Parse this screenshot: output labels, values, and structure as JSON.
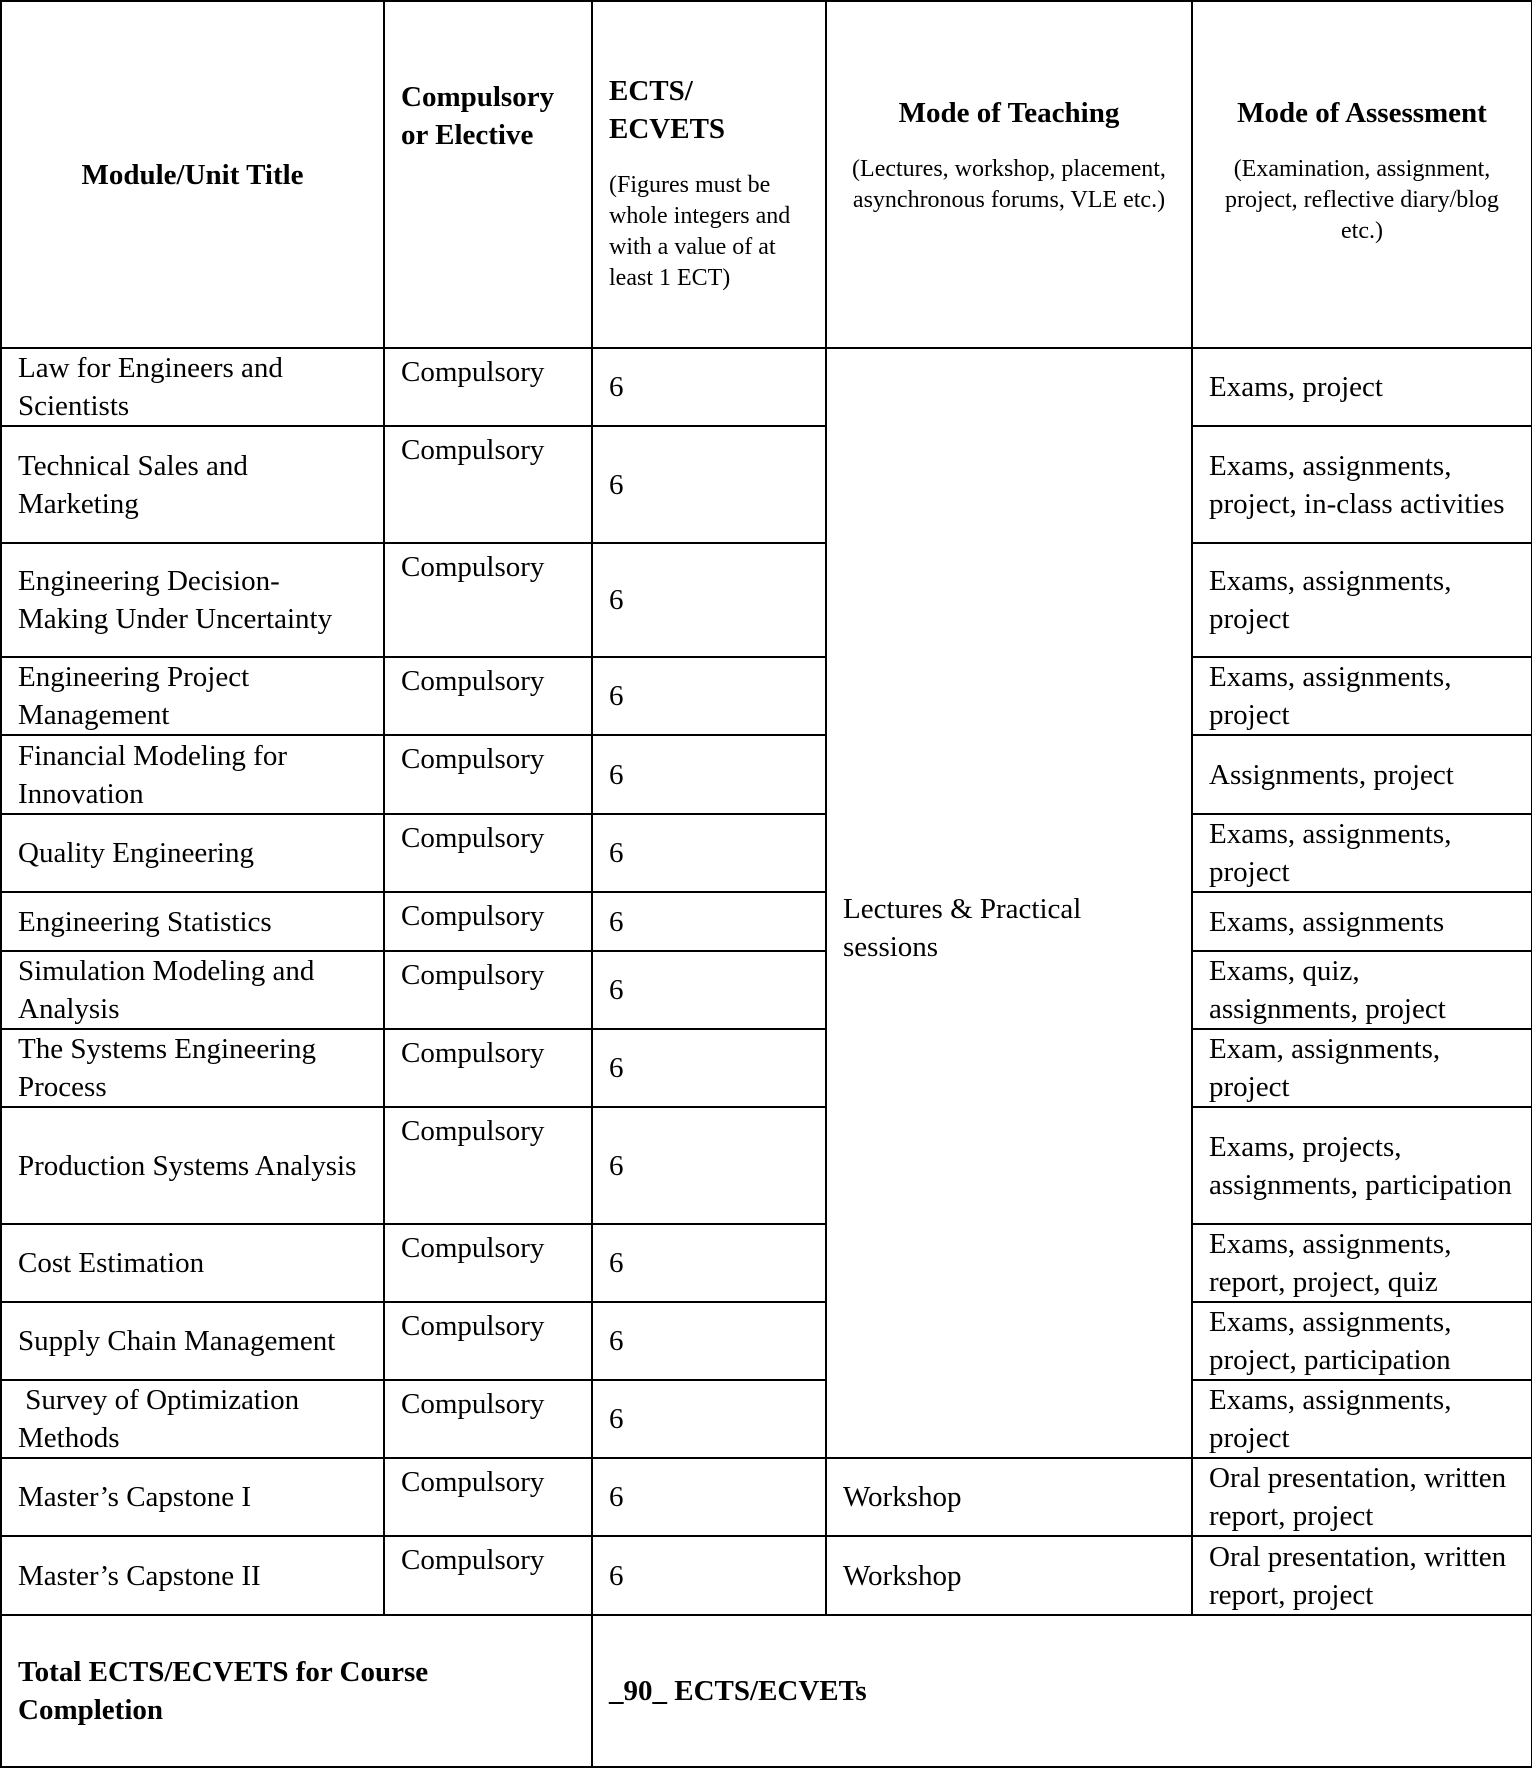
{
  "headers": {
    "title": "Module/Unit Title",
    "type": "Compulsory or Elective",
    "ects": "ECTS/ ECVETS",
    "ects_note": "(Figures must be whole integers and with a value of at least 1 ECT)",
    "teaching": "Mode of Teaching",
    "teaching_note": "(Lectures, workshop, placement, asynchronous forums, VLE etc.)",
    "assessment": "Mode of Assessment",
    "assessment_note": "(Examination, assignment, project, reflective diary/blog etc.)"
  },
  "shared_teaching": "Lectures & Practical sessions",
  "rows": [
    {
      "title": "Law for Engineers and Scientists",
      "type": "Compulsory",
      "ects": "6",
      "assessment": "Exams, project"
    },
    {
      "title": "Technical Sales and Marketing",
      "type": "Compulsory",
      "ects": "6",
      "assessment": "Exams, assignments, project, in-class activities"
    },
    {
      "title": "Engineering Decision-Making Under Uncertainty",
      "type": "Compulsory",
      "ects": "6",
      "assessment": "Exams, assignments, project"
    },
    {
      "title": "Engineering Project Management",
      "type": "Compulsory",
      "ects": "6",
      "assessment": "Exams, assignments, project"
    },
    {
      "title": "Financial Modeling for Innovation",
      "type": "Compulsory",
      "ects": "6",
      "assessment": "Assignments, project"
    },
    {
      "title": "Quality Engineering",
      "type": "Compulsory",
      "ects": "6",
      "assessment": "Exams, assignments, project"
    },
    {
      "title": "Engineering Statistics",
      "type": "Compulsory",
      "ects": "6",
      "assessment": "Exams, assignments"
    },
    {
      "title": "Simulation Modeling and Analysis",
      "type": "Compulsory",
      "ects": "6",
      "assessment": "Exams, quiz, assignments, project"
    },
    {
      "title": "The Systems Engineering Process",
      "type": "Compulsory",
      "ects": "6",
      "assessment": "Exam, assignments, project"
    },
    {
      "title": "Production Systems Analysis",
      "type": "Compulsory",
      "ects": "6",
      "assessment": "Exams, projects, assignments, participation"
    },
    {
      "title": "Cost Estimation",
      "type": "Compulsory",
      "ects": "6",
      "assessment": "Exams, assignments, report, project, quiz"
    },
    {
      "title": "Supply Chain Management",
      "type": "Compulsory",
      "ects": "6",
      "assessment": "Exams, assignments, project, participation"
    },
    {
      "title": " Survey of Optimization Methods",
      "type": "Compulsory",
      "ects": "6",
      "assessment": "Exams, assignments, project"
    },
    {
      "title": "Master’s Capstone I",
      "type": "Compulsory",
      "ects": "6",
      "teaching": "Workshop",
      "assessment": "Oral presentation, written report, project"
    },
    {
      "title": "Master’s Capstone II",
      "type": "Compulsory",
      "ects": "6",
      "teaching": "Workshop",
      "assessment": "Oral presentation, written report, project"
    }
  ],
  "total": {
    "label": "Total ECTS/ECVETS for Course Completion",
    "value": "_90_ ECTS/ECVETs"
  }
}
